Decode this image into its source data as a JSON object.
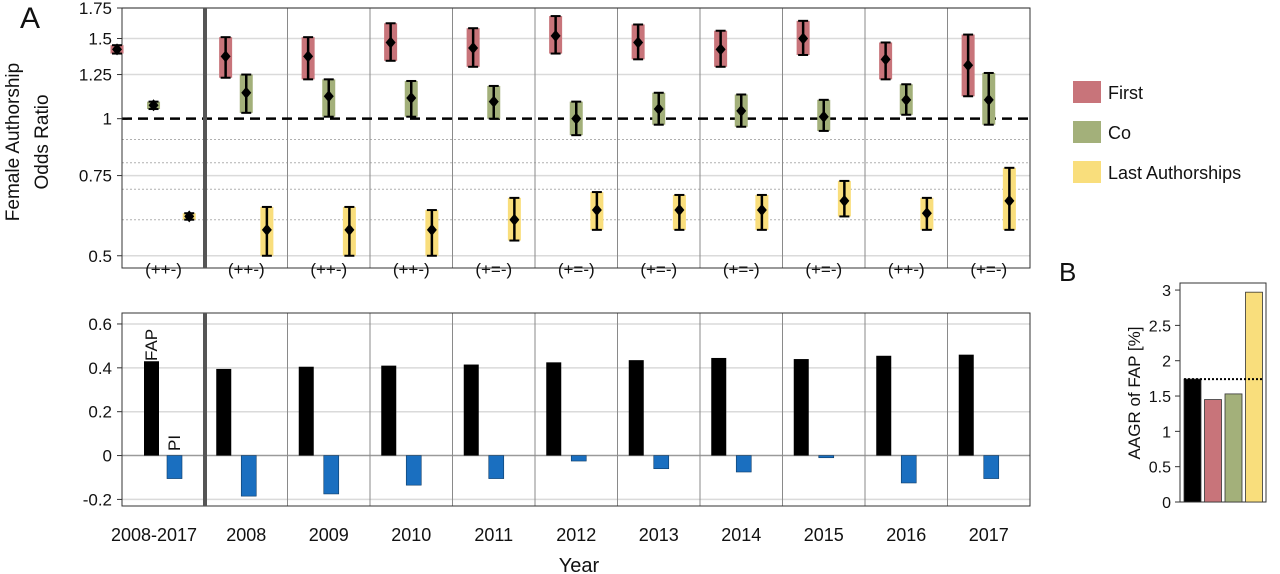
{
  "chart_data": [
    {
      "type": "errorbar",
      "panel_label": "A",
      "ylabel_lines": [
        "Female Authorship",
        "Odds Ratio"
      ],
      "y_scale": "log",
      "ylim": [
        0.47,
        1.75
      ],
      "yticks": [
        0.5,
        0.75,
        1,
        1.25,
        1.5,
        1.75
      ],
      "ytick_labels": [
        "0.5",
        "0.75",
        "1",
        "1.25",
        "1.5",
        "1.75"
      ],
      "minor_gridlines": [
        0.6,
        0.7,
        0.8,
        0.9
      ],
      "reference_line": 1,
      "grid": true,
      "categories": [
        "2008-2017",
        "2008",
        "2009",
        "2010",
        "2011",
        "2012",
        "2013",
        "2014",
        "2015",
        "2016",
        "2017"
      ],
      "annotations": [
        "(++-)",
        "(++-)",
        "(++-)",
        "(++-)",
        "(+=-)",
        "(+=-)",
        "(+=-)",
        "(+=-)",
        "(+=-)",
        "(++-)",
        "(+=-)"
      ],
      "legend": {
        "placement": "right",
        "entries": [
          "First",
          "Co",
          "Last Authorships"
        ]
      },
      "series": [
        {
          "name": "First",
          "color": "#c8747a",
          "values": [
            1.42,
            1.37,
            1.37,
            1.47,
            1.43,
            1.52,
            1.47,
            1.42,
            1.5,
            1.35,
            1.31
          ],
          "lower": [
            1.39,
            1.23,
            1.22,
            1.34,
            1.3,
            1.39,
            1.35,
            1.3,
            1.38,
            1.22,
            1.12
          ],
          "upper": [
            1.45,
            1.51,
            1.51,
            1.62,
            1.58,
            1.68,
            1.61,
            1.56,
            1.64,
            1.47,
            1.53
          ]
        },
        {
          "name": "Co",
          "color": "#a3b07a",
          "values": [
            1.07,
            1.14,
            1.12,
            1.11,
            1.09,
            1.0,
            1.05,
            1.04,
            1.01,
            1.1,
            1.1
          ],
          "lower": [
            1.05,
            1.03,
            1.01,
            1.01,
            1.0,
            0.92,
            0.97,
            0.96,
            0.94,
            1.02,
            0.97
          ],
          "upper": [
            1.09,
            1.25,
            1.22,
            1.21,
            1.18,
            1.09,
            1.14,
            1.13,
            1.1,
            1.19,
            1.26
          ]
        },
        {
          "name": "Last Authorships",
          "color": "#f9de7c",
          "values": [
            0.61,
            0.57,
            0.57,
            0.57,
            0.6,
            0.63,
            0.63,
            0.63,
            0.66,
            0.62,
            0.66
          ],
          "lower": [
            0.6,
            0.5,
            0.5,
            0.5,
            0.54,
            0.57,
            0.57,
            0.57,
            0.61,
            0.57,
            0.57
          ],
          "upper": [
            0.62,
            0.64,
            0.64,
            0.63,
            0.67,
            0.69,
            0.68,
            0.68,
            0.73,
            0.67,
            0.78
          ]
        }
      ]
    },
    {
      "type": "bar",
      "categories": [
        "2008-2017",
        "2008",
        "2009",
        "2010",
        "2011",
        "2012",
        "2013",
        "2014",
        "2015",
        "2016",
        "2017"
      ],
      "xlabel": "Year",
      "ylim": [
        -0.23,
        0.65
      ],
      "yticks": [
        -0.2,
        0,
        0.2,
        0.4,
        0.6
      ],
      "ytick_labels": [
        "-0.2",
        "0",
        "0.2",
        "0.4",
        "0.6"
      ],
      "grid": true,
      "series_labels": [
        "FAP",
        "PI"
      ],
      "series": [
        {
          "name": "FAP",
          "color": "#000000",
          "values": [
            0.43,
            0.395,
            0.405,
            0.41,
            0.415,
            0.425,
            0.435,
            0.445,
            0.44,
            0.455,
            0.46
          ]
        },
        {
          "name": "PI",
          "color": "#1a6fc0",
          "values": [
            -0.105,
            -0.185,
            -0.175,
            -0.135,
            -0.105,
            -0.025,
            -0.06,
            -0.075,
            -0.01,
            -0.125,
            -0.105
          ]
        }
      ]
    },
    {
      "type": "bar",
      "panel_label": "B",
      "ylabel": "AAGR of FAP [%]",
      "ylim": [
        0,
        3.1
      ],
      "yticks": [
        0,
        0.5,
        1,
        1.5,
        2,
        2.5,
        3
      ],
      "ytick_labels": [
        "0",
        "0.5",
        "1",
        "1.5",
        "2",
        "2.5",
        "3"
      ],
      "values": [
        1.74,
        1.45,
        1.53,
        2.97
      ],
      "colors": [
        "#000000",
        "#c8747a",
        "#a3b07a",
        "#f9de7c"
      ],
      "reference_line": 1.74
    }
  ]
}
